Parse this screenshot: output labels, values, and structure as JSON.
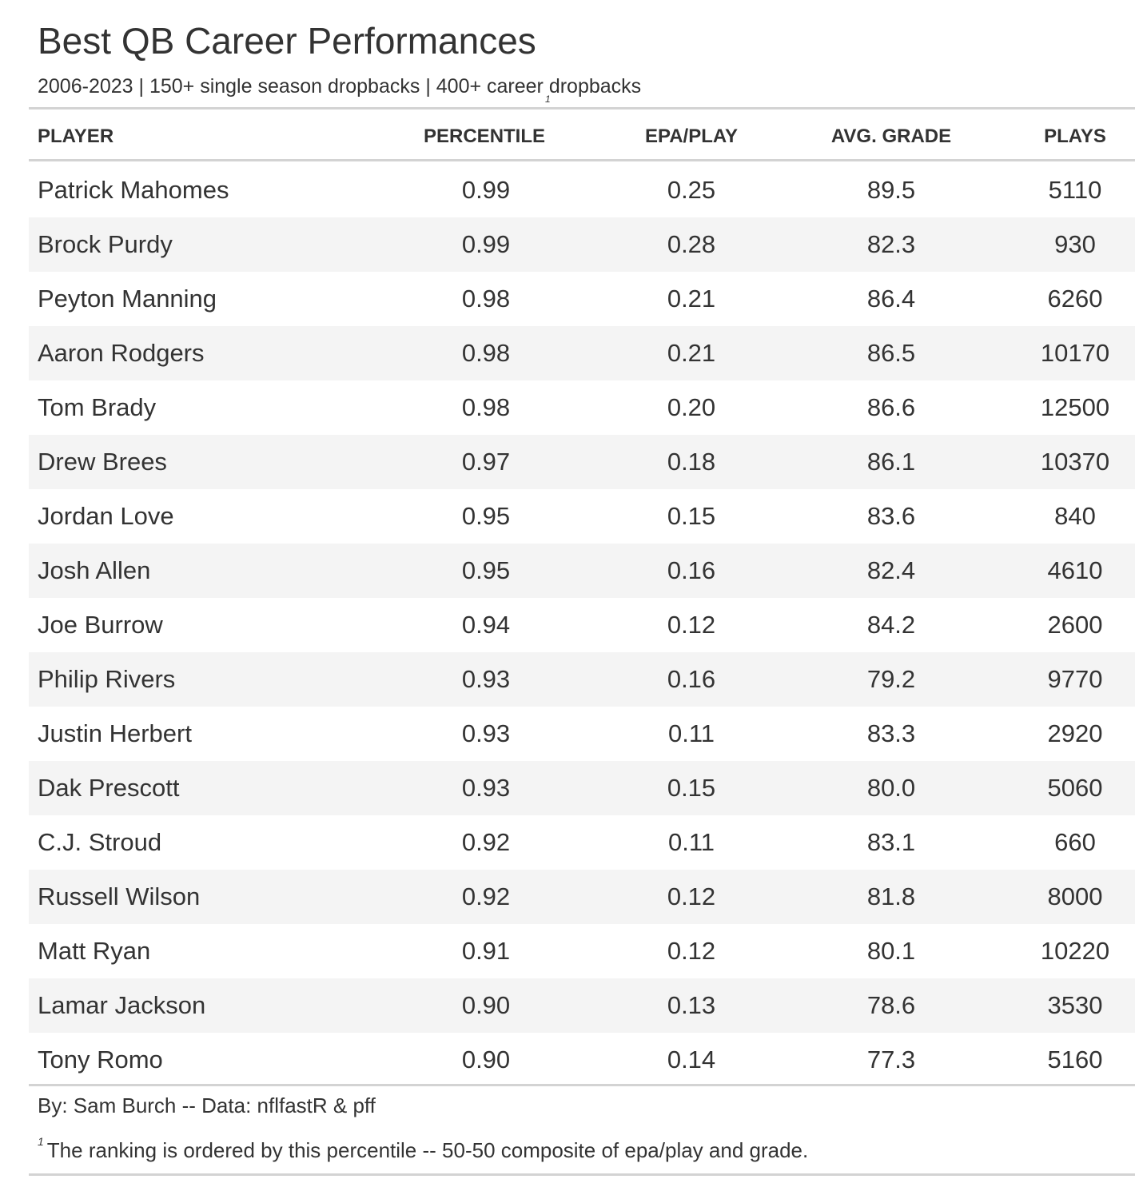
{
  "title": "Best QB Career Performances",
  "subtitle": "2006-2023 | 150+ single season dropbacks | 400+ career dropbacks",
  "columns": {
    "player": "PLAYER",
    "percentile": "PERCENTILE",
    "percentile_footnote_mark": "1",
    "epa": "EPA/PLAY",
    "grade": "AVG. GRADE",
    "plays": "PLAYS"
  },
  "source_note": "By: Sam Burch -- Data: nflfastR & pff",
  "footnote": {
    "mark": "1",
    "text": "The ranking is ordered by this percentile -- 50-50 composite of epa/play and grade."
  },
  "colors": {
    "text": "#333333",
    "stripe": "#f4f4f4",
    "rule": "#d3d3d3"
  },
  "chart_data": {
    "type": "table",
    "columns": [
      "PLAYER",
      "PERCENTILE",
      "EPA/PLAY",
      "AVG. GRADE",
      "PLAYS"
    ],
    "rows": [
      {
        "player": "Patrick Mahomes",
        "percentile": "0.99",
        "epa": "0.25",
        "grade": "89.5",
        "plays": "5110"
      },
      {
        "player": "Brock Purdy",
        "percentile": "0.99",
        "epa": "0.28",
        "grade": "82.3",
        "plays": "930"
      },
      {
        "player": "Peyton Manning",
        "percentile": "0.98",
        "epa": "0.21",
        "grade": "86.4",
        "plays": "6260"
      },
      {
        "player": "Aaron Rodgers",
        "percentile": "0.98",
        "epa": "0.21",
        "grade": "86.5",
        "plays": "10170"
      },
      {
        "player": "Tom Brady",
        "percentile": "0.98",
        "epa": "0.20",
        "grade": "86.6",
        "plays": "12500"
      },
      {
        "player": "Drew Brees",
        "percentile": "0.97",
        "epa": "0.18",
        "grade": "86.1",
        "plays": "10370"
      },
      {
        "player": "Jordan Love",
        "percentile": "0.95",
        "epa": "0.15",
        "grade": "83.6",
        "plays": "840"
      },
      {
        "player": "Josh Allen",
        "percentile": "0.95",
        "epa": "0.16",
        "grade": "82.4",
        "plays": "4610"
      },
      {
        "player": "Joe Burrow",
        "percentile": "0.94",
        "epa": "0.12",
        "grade": "84.2",
        "plays": "2600"
      },
      {
        "player": "Philip Rivers",
        "percentile": "0.93",
        "epa": "0.16",
        "grade": "79.2",
        "plays": "9770"
      },
      {
        "player": "Justin Herbert",
        "percentile": "0.93",
        "epa": "0.11",
        "grade": "83.3",
        "plays": "2920"
      },
      {
        "player": "Dak Prescott",
        "percentile": "0.93",
        "epa": "0.15",
        "grade": "80.0",
        "plays": "5060"
      },
      {
        "player": "C.J. Stroud",
        "percentile": "0.92",
        "epa": "0.11",
        "grade": "83.1",
        "plays": "660"
      },
      {
        "player": "Russell Wilson",
        "percentile": "0.92",
        "epa": "0.12",
        "grade": "81.8",
        "plays": "8000"
      },
      {
        "player": "Matt Ryan",
        "percentile": "0.91",
        "epa": "0.12",
        "grade": "80.1",
        "plays": "10220"
      },
      {
        "player": "Lamar Jackson",
        "percentile": "0.90",
        "epa": "0.13",
        "grade": "78.6",
        "plays": "3530"
      },
      {
        "player": "Tony Romo",
        "percentile": "0.90",
        "epa": "0.14",
        "grade": "77.3",
        "plays": "5160"
      }
    ]
  }
}
